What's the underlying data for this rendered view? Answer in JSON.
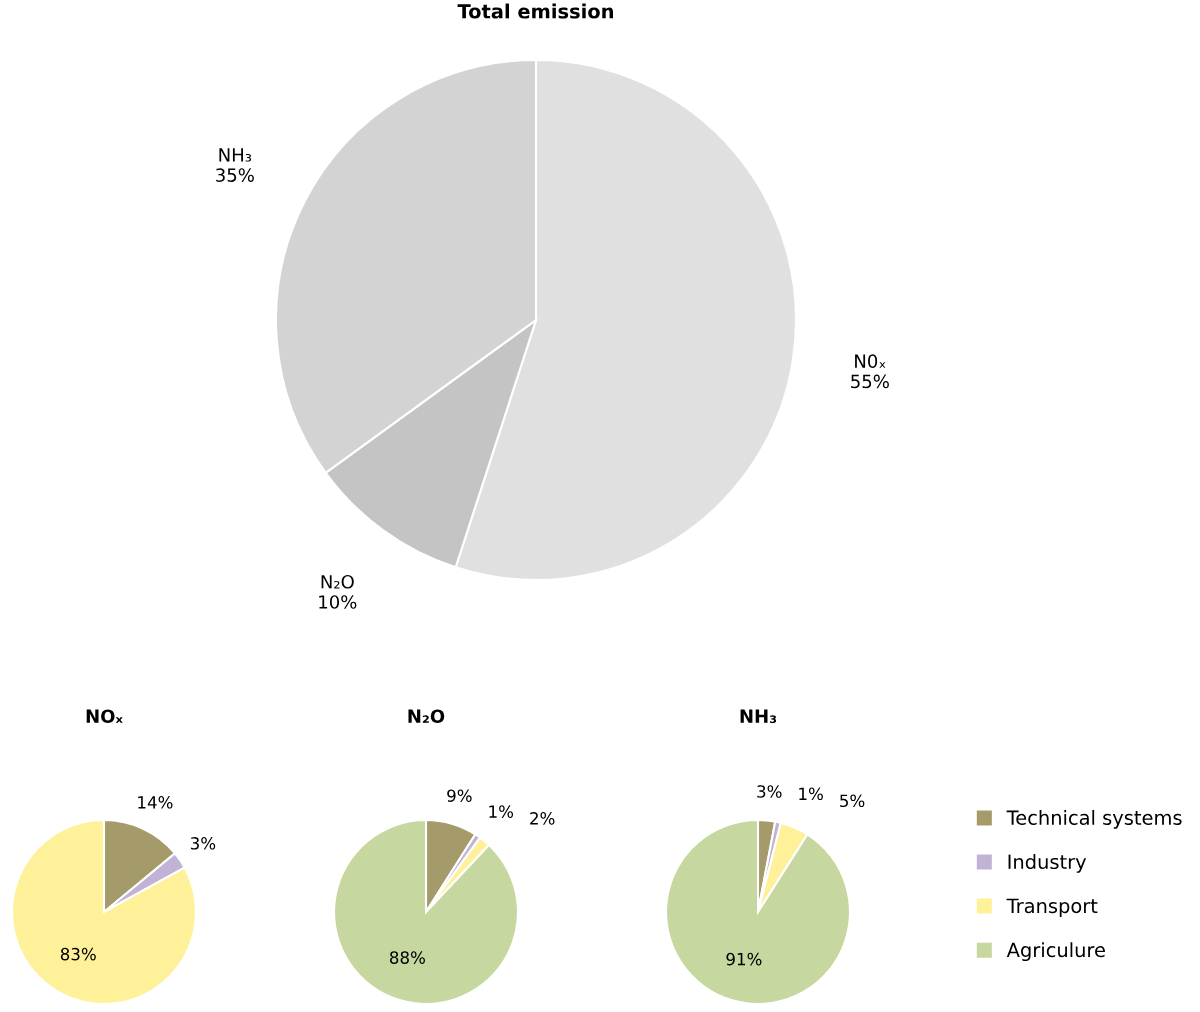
{
  "chart_data": [
    {
      "type": "pie",
      "title": "Total emission",
      "categories": [
        "N0ₓ",
        "N₂O",
        "NH₃"
      ],
      "values": [
        55,
        10,
        35
      ],
      "colors": [
        "#e0e0e0",
        "#c4c4c4",
        "#d3d3d3"
      ],
      "value_labels": [
        "55%",
        "10%",
        "35%"
      ]
    },
    {
      "type": "pie",
      "title": "NOₓ",
      "categories": [
        null,
        null,
        null
      ],
      "values": [
        14,
        3,
        83
      ],
      "colors": [
        "#a59a6a",
        "#c0b3d6",
        "#fff09a"
      ],
      "value_labels": [
        "14%",
        "3%",
        "83%"
      ]
    },
    {
      "type": "pie",
      "title": "N₂O",
      "categories": [
        null,
        null,
        null,
        null
      ],
      "values": [
        9,
        1,
        2,
        88
      ],
      "colors": [
        "#a59a6a",
        "#c0b3d6",
        "#fff09a",
        "#c6d7a0"
      ],
      "value_labels": [
        "9%",
        "1%",
        "2%",
        "88%"
      ]
    },
    {
      "type": "pie",
      "title": "NH₃",
      "categories": [
        "Technical systems",
        "Industry",
        "Transport",
        "Agriculure"
      ],
      "values": [
        3,
        1,
        5,
        91
      ],
      "colors": [
        "#a59a6a",
        "#c0b3d6",
        "#fff09a",
        "#c6d7a0"
      ],
      "value_labels": [
        "3%",
        "1%",
        "5%",
        "91%"
      ],
      "legend": "right"
    }
  ]
}
